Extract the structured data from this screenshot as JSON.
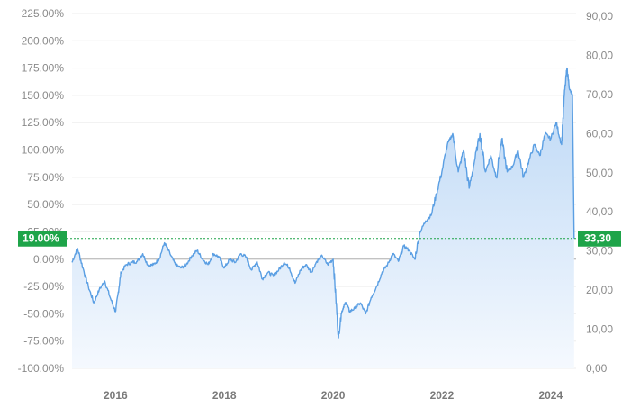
{
  "chart_data": {
    "type": "area",
    "left_axis": {
      "ticks": [
        "225.00%",
        "200.00%",
        "175.00%",
        "150.00%",
        "125.00%",
        "100.00%",
        "75.00%",
        "50.00%",
        "25.00%",
        "0.00%",
        "-25.00%",
        "-50.00%",
        "-75.00%",
        "-100.00%"
      ],
      "values": [
        225,
        200,
        175,
        150,
        125,
        100,
        75,
        50,
        25,
        0,
        -25,
        -50,
        -75,
        -100
      ],
      "range": [
        -100,
        225
      ]
    },
    "right_axis": {
      "ticks": [
        "90,00",
        "80,00",
        "70,00",
        "60,00",
        "50,00",
        "40,00",
        "30,00",
        "20,00",
        "10,00",
        "0,00"
      ],
      "values": [
        90,
        80,
        70,
        60,
        50,
        40,
        30,
        20,
        10,
        0
      ],
      "range": [
        0,
        90
      ]
    },
    "x_axis": {
      "ticks": [
        "2016",
        "2018",
        "2020",
        "2022",
        "2024"
      ],
      "values": [
        2016,
        2018,
        2020,
        2022,
        2024
      ],
      "range": [
        2015.2,
        2024.45
      ]
    },
    "series": [
      {
        "x": [
          2015.2,
          2015.3,
          2015.4,
          2015.5,
          2015.6,
          2015.7,
          2015.8,
          2015.9,
          2016.0,
          2016.05,
          2016.1,
          2016.2,
          2016.3,
          2016.4,
          2016.5,
          2016.6,
          2016.7,
          2016.8,
          2016.9,
          2017.0,
          2017.1,
          2017.2,
          2017.3,
          2017.4,
          2017.5,
          2017.6,
          2017.7,
          2017.8,
          2017.9,
          2018.0,
          2018.1,
          2018.2,
          2018.3,
          2018.4,
          2018.5,
          2018.6,
          2018.7,
          2018.8,
          2018.9,
          2019.0,
          2019.1,
          2019.2,
          2019.3,
          2019.4,
          2019.5,
          2019.6,
          2019.7,
          2019.8,
          2019.9,
          2020.0,
          2020.05,
          2020.1,
          2020.15,
          2020.2,
          2020.25,
          2020.3,
          2020.4,
          2020.5,
          2020.6,
          2020.7,
          2020.8,
          2020.9,
          2021.0,
          2021.1,
          2021.2,
          2021.3,
          2021.4,
          2021.5,
          2021.6,
          2021.7,
          2021.8,
          2021.9,
          2022.0,
          2022.1,
          2022.2,
          2022.3,
          2022.4,
          2022.5,
          2022.6,
          2022.7,
          2022.8,
          2022.9,
          2023.0,
          2023.1,
          2023.2,
          2023.3,
          2023.4,
          2023.5,
          2023.6,
          2023.7,
          2023.8,
          2023.9,
          2024.0,
          2024.1,
          2024.2,
          2024.25,
          2024.3,
          2024.35,
          2024.4,
          2024.43
        ],
        "values": [
          -3,
          10,
          -8,
          -25,
          -40,
          -28,
          -20,
          -35,
          -48,
          -30,
          -12,
          -5,
          -3,
          -2,
          5,
          -6,
          -5,
          0,
          15,
          5,
          -5,
          -8,
          -5,
          3,
          8,
          0,
          -5,
          5,
          2,
          -8,
          0,
          -3,
          5,
          2,
          -10,
          -2,
          -18,
          -12,
          -15,
          -10,
          -3,
          -8,
          -22,
          -10,
          -5,
          -12,
          -2,
          3,
          -5,
          0,
          -35,
          -72,
          -50,
          -42,
          -40,
          -48,
          -45,
          -40,
          -50,
          -35,
          -25,
          -12,
          -5,
          5,
          -2,
          12,
          8,
          0,
          25,
          35,
          40,
          60,
          80,
          105,
          115,
          80,
          100,
          65,
          90,
          115,
          80,
          95,
          75,
          110,
          80,
          85,
          100,
          75,
          90,
          105,
          95,
          115,
          110,
          125,
          105,
          150,
          175,
          155,
          150,
          19
        ]
      }
    ]
  },
  "badges": {
    "left": "19.00%",
    "right": "33,30"
  },
  "colors": {
    "line": "#5b9fe3",
    "fill_top": "#b9d6f5",
    "fill_bottom": "#f5f9fe",
    "badge": "#1ea449",
    "zero_line": "#b0b0b0",
    "grid": "#eeeeee"
  }
}
